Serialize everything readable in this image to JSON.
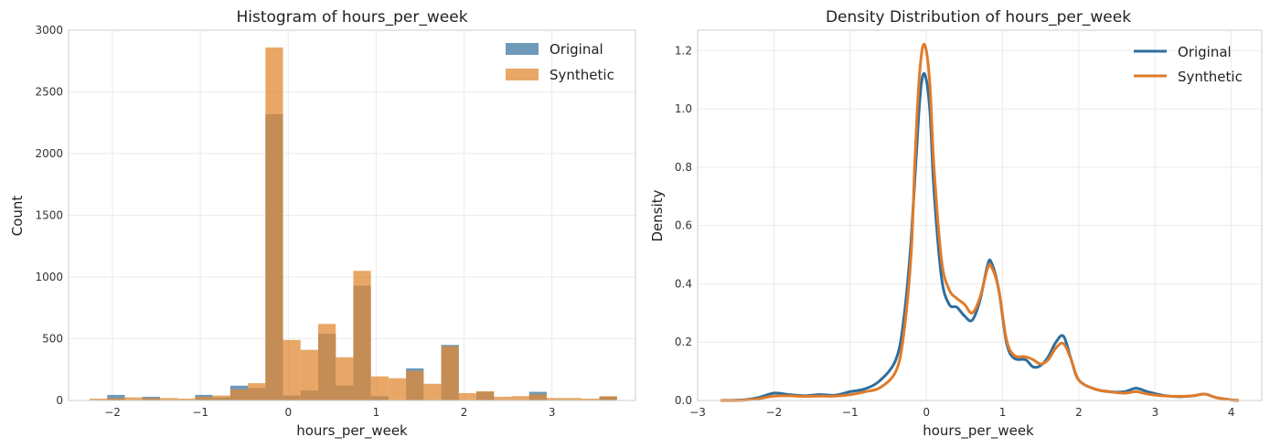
{
  "chart_data": [
    {
      "type": "bar",
      "title": "Histogram of hours_per_week",
      "xlabel": "hours_per_week",
      "ylabel": "Count",
      "xlim": [
        -2.5,
        3.95
      ],
      "ylim": [
        0,
        3000
      ],
      "xticks": [
        -2,
        -1,
        0,
        1,
        2,
        3
      ],
      "xtick_labels": [
        "−2",
        "−1",
        "0",
        "1",
        "2",
        "3"
      ],
      "yticks": [
        0,
        500,
        1000,
        1500,
        2000,
        2500,
        3000
      ],
      "ytick_labels": [
        "0",
        "500",
        "1000",
        "1500",
        "2000",
        "2500",
        "3000"
      ],
      "grid": true,
      "legend_position": "top-right",
      "bin_edges": [
        -2.26,
        -2.06,
        -1.86,
        -1.66,
        -1.46,
        -1.26,
        -1.06,
        -0.86,
        -0.66,
        -0.46,
        -0.26,
        -0.06,
        0.14,
        0.34,
        0.54,
        0.74,
        0.94,
        1.14,
        1.34,
        1.54,
        1.74,
        1.94,
        2.14,
        2.34,
        2.54,
        2.74,
        2.94,
        3.14,
        3.34,
        3.54,
        3.74
      ],
      "series": [
        {
          "name": "Original",
          "color": "#4a7fa8",
          "values": [
            0,
            45,
            0,
            30,
            0,
            0,
            45,
            25,
            120,
            100,
            2320,
            40,
            80,
            540,
            120,
            930,
            35,
            0,
            260,
            0,
            450,
            0,
            70,
            0,
            0,
            70,
            0,
            0,
            0,
            30
          ]
        },
        {
          "name": "Synthetic",
          "color": "#e08a34",
          "values": [
            15,
            20,
            25,
            20,
            20,
            15,
            30,
            40,
            90,
            140,
            2860,
            490,
            410,
            620,
            350,
            1050,
            195,
            180,
            240,
            135,
            440,
            60,
            75,
            30,
            35,
            50,
            20,
            20,
            15,
            35
          ]
        }
      ]
    },
    {
      "type": "line",
      "title": "Density Distribution of hours_per_week",
      "xlabel": "hours_per_week",
      "ylabel": "Density",
      "xlim": [
        -3,
        4.4
      ],
      "ylim": [
        0,
        1.27
      ],
      "xticks": [
        -3,
        -2,
        -1,
        0,
        1,
        2,
        3,
        4
      ],
      "xtick_labels": [
        "−3",
        "−2",
        "−1",
        "0",
        "1",
        "2",
        "3",
        "4"
      ],
      "yticks": [
        0,
        0.2,
        0.4,
        0.6,
        0.8,
        1.0,
        1.2
      ],
      "ytick_labels": [
        "0.0",
        "0.2",
        "0.4",
        "0.6",
        "0.8",
        "1.0",
        "1.2"
      ],
      "grid": true,
      "legend_position": "top-right",
      "series": [
        {
          "name": "Original",
          "color": "#2e6e9e",
          "points": [
            [
              -2.7,
              0.0
            ],
            [
              -2.4,
              0.002
            ],
            [
              -2.2,
              0.01
            ],
            [
              -2.0,
              0.025
            ],
            [
              -1.8,
              0.02
            ],
            [
              -1.6,
              0.016
            ],
            [
              -1.4,
              0.02
            ],
            [
              -1.2,
              0.018
            ],
            [
              -1.0,
              0.03
            ],
            [
              -0.8,
              0.04
            ],
            [
              -0.6,
              0.07
            ],
            [
              -0.4,
              0.14
            ],
            [
              -0.3,
              0.27
            ],
            [
              -0.2,
              0.55
            ],
            [
              -0.1,
              0.98
            ],
            [
              -0.05,
              1.11
            ],
            [
              0.0,
              1.1
            ],
            [
              0.05,
              0.98
            ],
            [
              0.1,
              0.72
            ],
            [
              0.2,
              0.42
            ],
            [
              0.3,
              0.33
            ],
            [
              0.4,
              0.32
            ],
            [
              0.5,
              0.29
            ],
            [
              0.6,
              0.275
            ],
            [
              0.7,
              0.34
            ],
            [
              0.8,
              0.46
            ],
            [
              0.85,
              0.475
            ],
            [
              0.95,
              0.38
            ],
            [
              1.05,
              0.2
            ],
            [
              1.15,
              0.145
            ],
            [
              1.3,
              0.14
            ],
            [
              1.4,
              0.115
            ],
            [
              1.5,
              0.12
            ],
            [
              1.6,
              0.15
            ],
            [
              1.7,
              0.2
            ],
            [
              1.8,
              0.22
            ],
            [
              1.9,
              0.14
            ],
            [
              2.0,
              0.07
            ],
            [
              2.2,
              0.04
            ],
            [
              2.4,
              0.03
            ],
            [
              2.6,
              0.03
            ],
            [
              2.75,
              0.042
            ],
            [
              2.9,
              0.03
            ],
            [
              3.1,
              0.018
            ],
            [
              3.3,
              0.013
            ],
            [
              3.5,
              0.016
            ],
            [
              3.65,
              0.022
            ],
            [
              3.8,
              0.01
            ],
            [
              4.0,
              0.002
            ],
            [
              4.1,
              0.0
            ]
          ]
        },
        {
          "name": "Synthetic",
          "color": "#e07b2a",
          "points": [
            [
              -2.7,
              0.0
            ],
            [
              -2.4,
              0.001
            ],
            [
              -2.2,
              0.006
            ],
            [
              -2.0,
              0.015
            ],
            [
              -1.8,
              0.016
            ],
            [
              -1.6,
              0.014
            ],
            [
              -1.4,
              0.015
            ],
            [
              -1.2,
              0.015
            ],
            [
              -1.0,
              0.02
            ],
            [
              -0.8,
              0.03
            ],
            [
              -0.6,
              0.045
            ],
            [
              -0.4,
              0.1
            ],
            [
              -0.3,
              0.22
            ],
            [
              -0.2,
              0.5
            ],
            [
              -0.15,
              0.82
            ],
            [
              -0.1,
              1.08
            ],
            [
              -0.05,
              1.21
            ],
            [
              0.0,
              1.2
            ],
            [
              0.05,
              1.07
            ],
            [
              0.1,
              0.8
            ],
            [
              0.2,
              0.48
            ],
            [
              0.3,
              0.38
            ],
            [
              0.4,
              0.35
            ],
            [
              0.5,
              0.33
            ],
            [
              0.6,
              0.3
            ],
            [
              0.7,
              0.35
            ],
            [
              0.8,
              0.45
            ],
            [
              0.85,
              0.46
            ],
            [
              0.95,
              0.38
            ],
            [
              1.05,
              0.21
            ],
            [
              1.15,
              0.155
            ],
            [
              1.3,
              0.15
            ],
            [
              1.4,
              0.14
            ],
            [
              1.5,
              0.125
            ],
            [
              1.6,
              0.14
            ],
            [
              1.7,
              0.18
            ],
            [
              1.8,
              0.195
            ],
            [
              1.9,
              0.14
            ],
            [
              2.0,
              0.07
            ],
            [
              2.2,
              0.04
            ],
            [
              2.4,
              0.03
            ],
            [
              2.6,
              0.025
            ],
            [
              2.75,
              0.03
            ],
            [
              2.9,
              0.022
            ],
            [
              3.1,
              0.016
            ],
            [
              3.3,
              0.014
            ],
            [
              3.5,
              0.016
            ],
            [
              3.65,
              0.022
            ],
            [
              3.8,
              0.01
            ],
            [
              4.0,
              0.002
            ],
            [
              4.1,
              0.0
            ]
          ]
        }
      ]
    }
  ]
}
